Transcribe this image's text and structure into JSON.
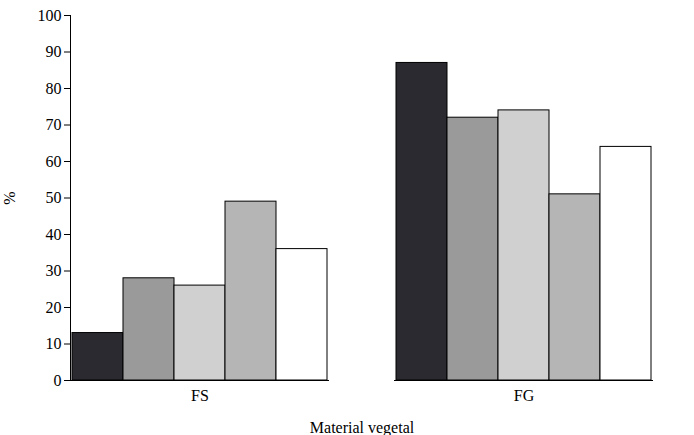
{
  "chart_data": {
    "type": "bar",
    "x_label": "Material vegetal",
    "y_label": "%",
    "categories": [
      "FS",
      "FG"
    ],
    "series": [
      {
        "color": "#2a2a30",
        "values": [
          13,
          87
        ]
      },
      {
        "color": "#9a9a9a",
        "values": [
          28,
          72
        ]
      },
      {
        "color": "#d0d0d0",
        "values": [
          26,
          74
        ]
      },
      {
        "color": "#b5b5b5",
        "values": [
          49,
          51
        ]
      },
      {
        "color": "#ffffff",
        "values": [
          36,
          64
        ]
      }
    ],
    "ylim": [
      0,
      100
    ],
    "yticks": [
      0,
      10,
      20,
      30,
      40,
      50,
      60,
      70,
      80,
      90,
      100
    ],
    "grid": false
  }
}
